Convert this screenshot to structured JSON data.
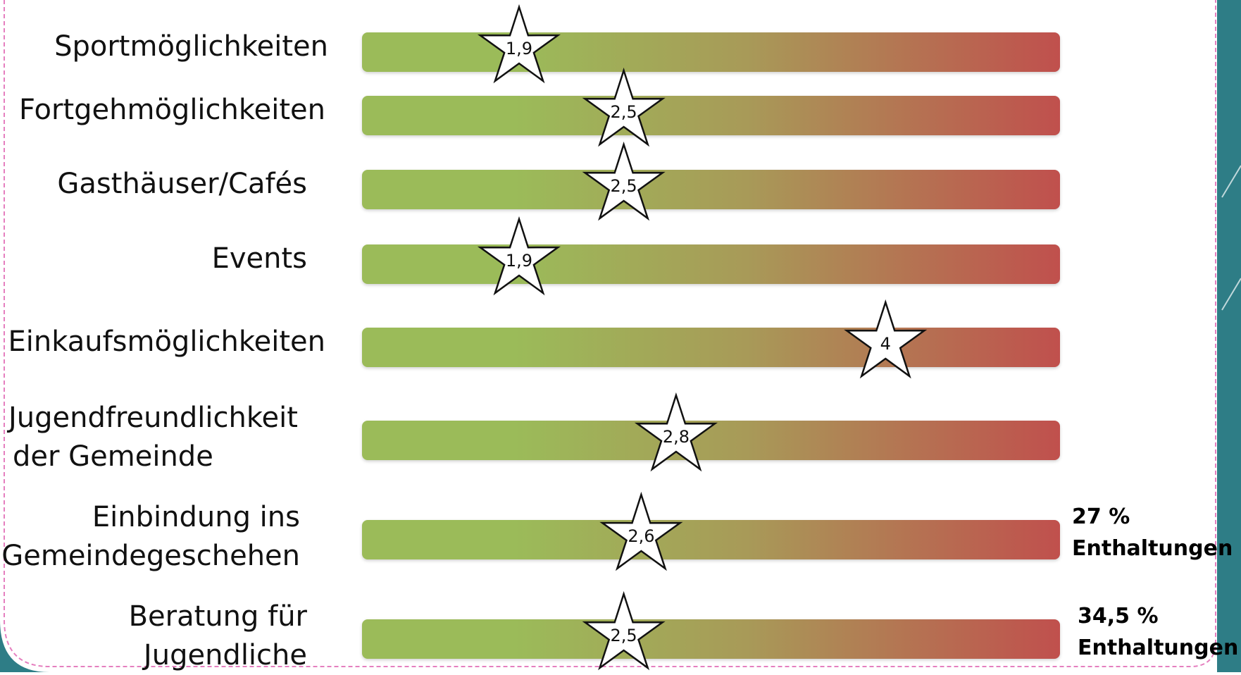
{
  "chart_data": {
    "type": "bar",
    "scale": [
      1,
      5
    ],
    "colors": {
      "good": "#9bbb59",
      "mid": "#a89a58",
      "bad": "#c0504d",
      "frame_accent": "#2e7d86",
      "dashed_border": "#e57fbf"
    },
    "items": [
      {
        "label_lines": [
          "Sportmöglichkeiten"
        ],
        "value": 1.9,
        "value_label": "1,9"
      },
      {
        "label_lines": [
          "Fortgehmöglichkeiten"
        ],
        "value": 2.5,
        "value_label": "2,5"
      },
      {
        "label_lines": [
          "Gasthäuser/Cafés"
        ],
        "value": 2.5,
        "value_label": "2,5"
      },
      {
        "label_lines": [
          "Events"
        ],
        "value": 1.9,
        "value_label": "1,9"
      },
      {
        "label_lines": [
          "Einkaufsmöglichkeiten"
        ],
        "value": 4,
        "value_label": "4"
      },
      {
        "label_lines": [
          "Jugendfreundlichkeit",
          "der Gemeinde"
        ],
        "value": 2.8,
        "value_label": "2,8"
      },
      {
        "label_lines": [
          "Einbindung  ins",
          "Gemeindegeschehen"
        ],
        "value": 2.6,
        "value_label": "2,6",
        "note_lines": [
          "27 %",
          "Enthaltungen"
        ]
      },
      {
        "label_lines": [
          "Beratung für",
          "Jugendliche"
        ],
        "value": 2.5,
        "value_label": "2,5",
        "note_lines": [
          "34,5 %",
          "Enthaltungen"
        ]
      }
    ]
  }
}
